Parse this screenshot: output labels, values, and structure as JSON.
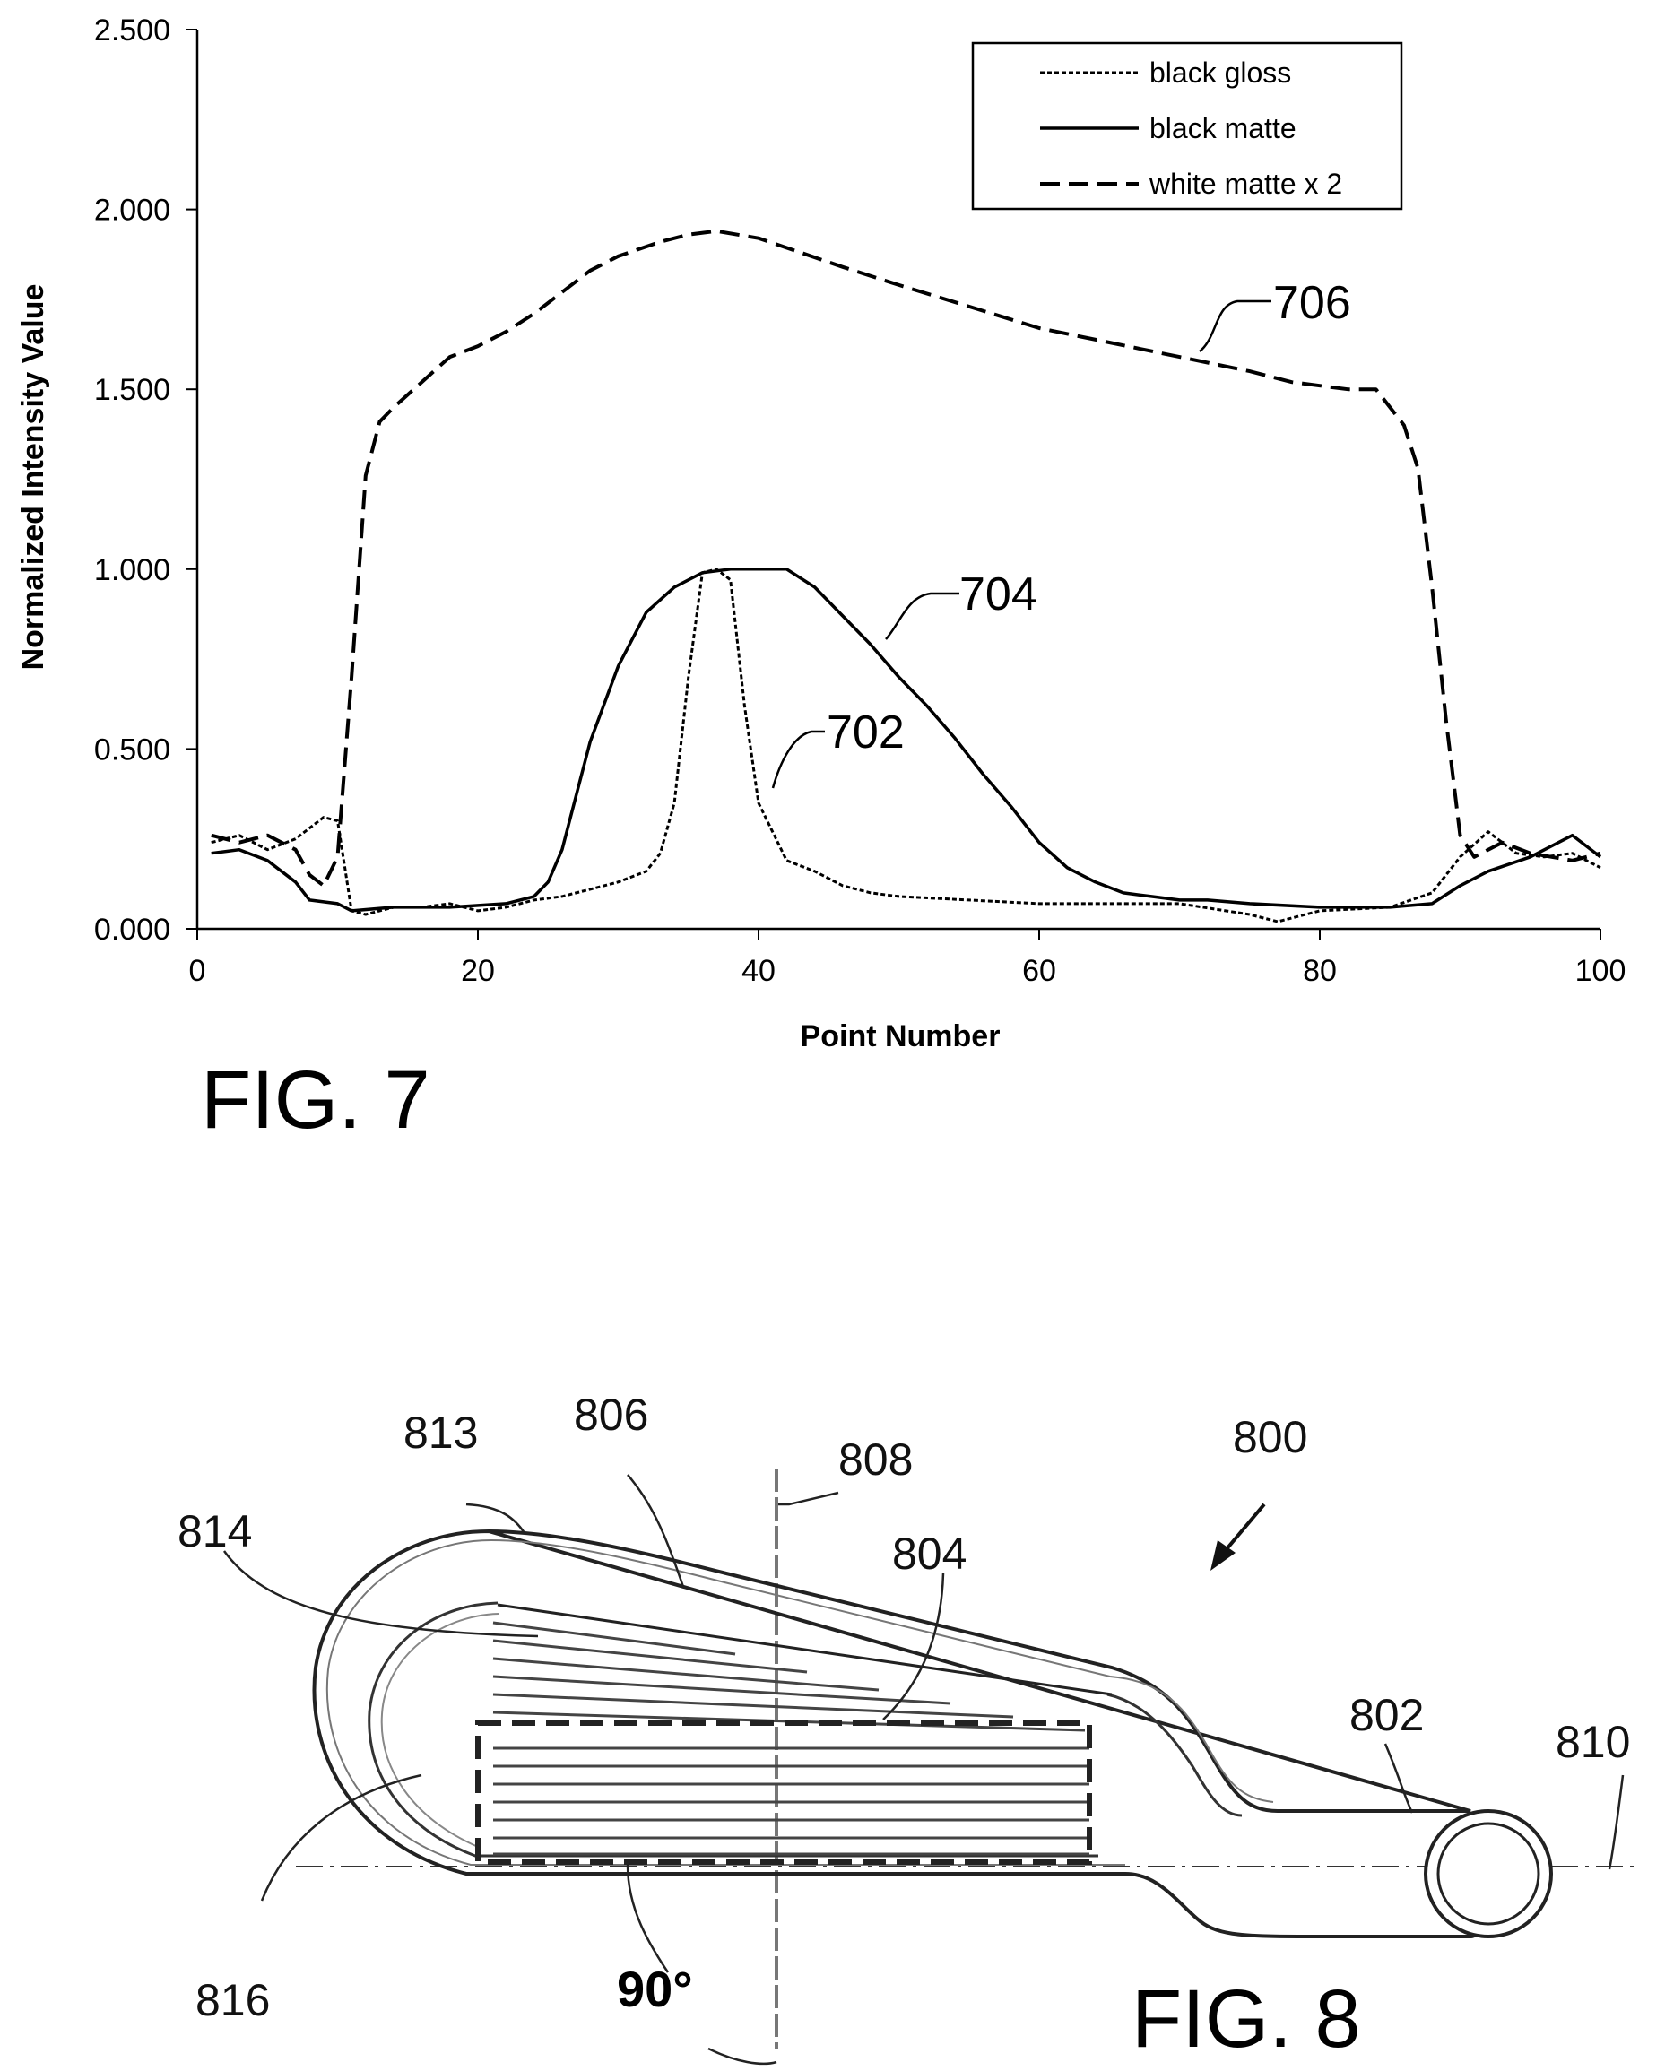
{
  "figure7": {
    "caption": "FIG. 7",
    "callouts": {
      "white_matte": "706",
      "black_matte": "704",
      "black_gloss": "702"
    }
  },
  "figure8": {
    "caption": "FIG. 8",
    "angle_label": "90°",
    "refs": [
      "800",
      "802",
      "804",
      "806",
      "808",
      "810",
      "813",
      "814",
      "816"
    ]
  },
  "chart_data": {
    "type": "line",
    "xlabel": "Point Number",
    "ylabel": "Normalized Intensity Value",
    "xlim": [
      0,
      100
    ],
    "ylim": [
      0,
      2.5
    ],
    "xticks": [
      "0",
      "20",
      "40",
      "60",
      "80",
      "100"
    ],
    "yticks": [
      "0.000",
      "0.500",
      "1.000",
      "1.500",
      "2.000",
      "2.500"
    ],
    "grid": false,
    "legend_position": "top-right",
    "series": [
      {
        "name": "black gloss",
        "style": "dotted",
        "x": [
          1,
          3,
          5,
          7,
          9,
          10,
          11,
          12,
          14,
          16,
          18,
          20,
          22,
          24,
          26,
          28,
          30,
          32,
          33,
          34,
          35,
          36,
          37,
          38,
          39,
          40,
          42,
          44,
          46,
          48,
          50,
          55,
          60,
          65,
          70,
          75,
          77,
          80,
          85,
          88,
          90,
          92,
          94,
          96,
          98,
          100
        ],
        "y": [
          0.24,
          0.26,
          0.22,
          0.25,
          0.31,
          0.3,
          0.05,
          0.04,
          0.06,
          0.06,
          0.07,
          0.05,
          0.06,
          0.08,
          0.09,
          0.11,
          0.13,
          0.16,
          0.21,
          0.35,
          0.7,
          0.99,
          1.0,
          0.97,
          0.62,
          0.35,
          0.19,
          0.16,
          0.12,
          0.1,
          0.09,
          0.08,
          0.07,
          0.07,
          0.07,
          0.04,
          0.02,
          0.05,
          0.06,
          0.1,
          0.2,
          0.27,
          0.21,
          0.2,
          0.21,
          0.17
        ]
      },
      {
        "name": "black matte",
        "style": "solid",
        "x": [
          1,
          3,
          5,
          7,
          8,
          10,
          11,
          14,
          18,
          22,
          24,
          25,
          26,
          27,
          28,
          30,
          32,
          34,
          36,
          38,
          40,
          42,
          44,
          46,
          48,
          50,
          52,
          54,
          56,
          58,
          60,
          62,
          64,
          66,
          68,
          70,
          72,
          75,
          80,
          85,
          88,
          90,
          92,
          95,
          98,
          100
        ],
        "y": [
          0.21,
          0.22,
          0.19,
          0.13,
          0.08,
          0.07,
          0.05,
          0.06,
          0.06,
          0.07,
          0.09,
          0.13,
          0.22,
          0.37,
          0.52,
          0.73,
          0.88,
          0.95,
          0.99,
          1.0,
          1.0,
          1.0,
          0.95,
          0.87,
          0.79,
          0.7,
          0.62,
          0.53,
          0.43,
          0.34,
          0.24,
          0.17,
          0.13,
          0.1,
          0.09,
          0.08,
          0.08,
          0.07,
          0.06,
          0.06,
          0.07,
          0.12,
          0.16,
          0.2,
          0.26,
          0.2
        ]
      },
      {
        "name": "white matte x 2",
        "style": "dashed",
        "x": [
          1,
          3,
          5,
          7,
          8,
          9,
          10,
          11,
          12,
          13,
          14,
          16,
          18,
          20,
          22,
          24,
          26,
          28,
          30,
          33,
          35,
          37,
          40,
          43,
          46,
          50,
          55,
          60,
          65,
          70,
          75,
          78,
          80,
          82,
          84,
          86,
          87,
          88,
          89,
          90,
          91,
          93,
          95,
          98,
          100
        ],
        "y": [
          0.26,
          0.24,
          0.26,
          0.22,
          0.15,
          0.12,
          0.2,
          0.7,
          1.26,
          1.41,
          1.45,
          1.52,
          1.59,
          1.62,
          1.66,
          1.71,
          1.77,
          1.83,
          1.87,
          1.91,
          1.93,
          1.94,
          1.92,
          1.88,
          1.84,
          1.79,
          1.73,
          1.67,
          1.63,
          1.59,
          1.55,
          1.52,
          1.51,
          1.5,
          1.5,
          1.4,
          1.28,
          0.95,
          0.58,
          0.26,
          0.2,
          0.24,
          0.21,
          0.19,
          0.21
        ]
      }
    ]
  }
}
